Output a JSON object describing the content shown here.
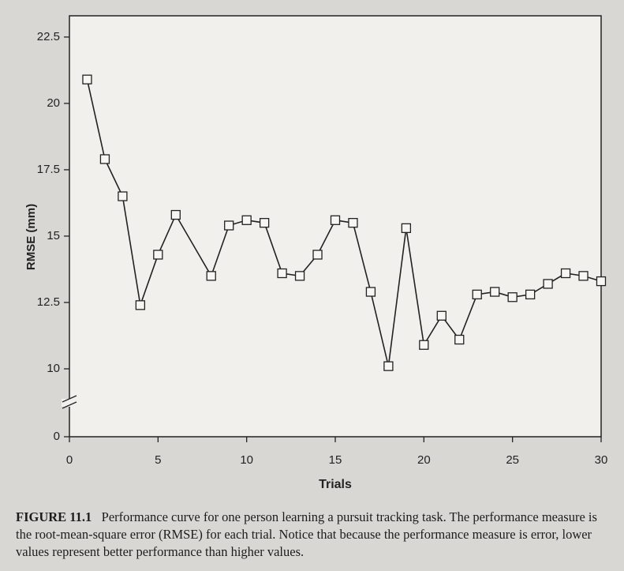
{
  "chart_data": {
    "type": "line",
    "x_label": "Trials",
    "y_label": "RMSE (mm)",
    "x": [
      1,
      2,
      3,
      4,
      5,
      6,
      8,
      9,
      10,
      11,
      12,
      13,
      14,
      15,
      16,
      17,
      18,
      19,
      20,
      21,
      22,
      23,
      24,
      25,
      26,
      27,
      28,
      29,
      30
    ],
    "values": [
      20.9,
      17.9,
      16.5,
      12.4,
      14.3,
      15.8,
      13.5,
      15.4,
      15.6,
      15.5,
      13.6,
      13.5,
      14.3,
      15.6,
      15.5,
      12.9,
      10.1,
      15.3,
      10.9,
      12.0,
      11.1,
      12.8,
      12.9,
      12.7,
      12.8,
      13.2,
      13.6,
      13.5,
      13.3
    ],
    "color": "#222222",
    "marker": "square",
    "xlim": [
      0,
      30
    ],
    "xticks": [
      0,
      5,
      10,
      15,
      20,
      25,
      30
    ],
    "ylim": [
      0,
      23.3
    ],
    "yticks": [
      0,
      10,
      12.5,
      15,
      17.5,
      20,
      22.5
    ],
    "axis_break": [
      0,
      10
    ],
    "caption_label": "FIGURE 11.1",
    "caption": "Performance curve for one person learning a pursuit tracking task. The performance measure is the root-mean-square error (RMSE) for each trial. Notice that because the performance measure is error, lower values represent better performance than higher values."
  }
}
